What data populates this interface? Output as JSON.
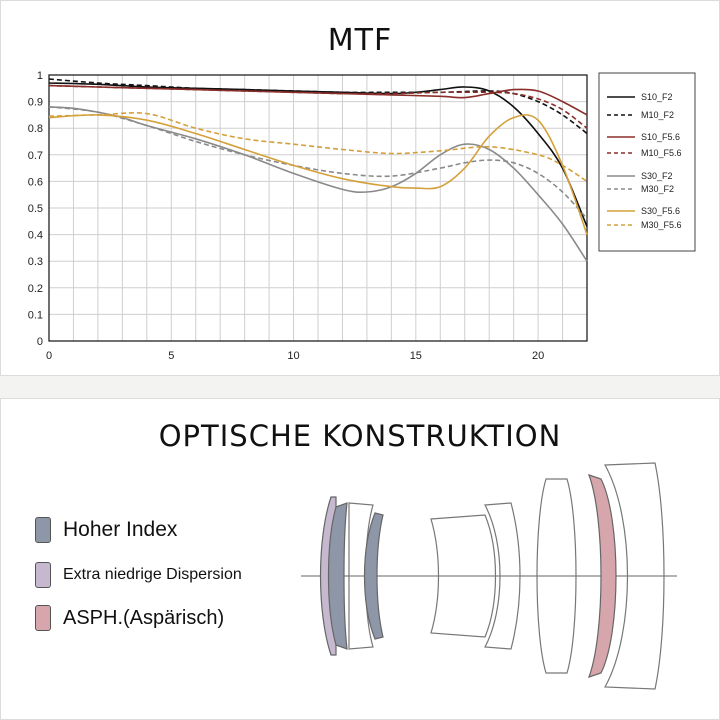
{
  "mtf": {
    "title": "MTF"
  },
  "chart_data": {
    "type": "line",
    "title": "MTF",
    "xlim": [
      0,
      22
    ],
    "ylim": [
      0,
      1
    ],
    "x_ticks": [
      0,
      5,
      10,
      15,
      20
    ],
    "y_ticks": [
      0,
      0.1,
      0.2,
      0.3,
      0.4,
      0.5,
      0.6,
      0.7,
      0.8,
      0.9,
      1
    ],
    "grid": true,
    "legend_position": "right",
    "series": [
      {
        "name": "S10_F2",
        "color": "#111111",
        "dash": "solid",
        "x": [
          0,
          2,
          4,
          6,
          8,
          10,
          12,
          14,
          15,
          16,
          17,
          18,
          19,
          20,
          21,
          22
        ],
        "y": [
          0.97,
          0.965,
          0.955,
          0.95,
          0.945,
          0.94,
          0.935,
          0.93,
          0.935,
          0.945,
          0.955,
          0.94,
          0.88,
          0.78,
          0.65,
          0.43
        ]
      },
      {
        "name": "M10_F2",
        "color": "#111111",
        "dash": "dashed",
        "x": [
          0,
          2,
          4,
          6,
          8,
          10,
          12,
          14,
          16,
          18,
          19,
          20,
          21,
          22
        ],
        "y": [
          0.985,
          0.97,
          0.96,
          0.95,
          0.945,
          0.94,
          0.935,
          0.935,
          0.935,
          0.94,
          0.93,
          0.9,
          0.85,
          0.78
        ]
      },
      {
        "name": "S10_F5.6",
        "color": "#8b2e2a",
        "dash": "solid",
        "x": [
          0,
          2,
          4,
          6,
          8,
          10,
          12,
          14,
          16,
          17,
          18,
          19,
          20,
          21,
          22
        ],
        "y": [
          0.96,
          0.955,
          0.95,
          0.945,
          0.94,
          0.935,
          0.93,
          0.925,
          0.92,
          0.915,
          0.93,
          0.945,
          0.94,
          0.9,
          0.85
        ]
      },
      {
        "name": "M10_F5.6",
        "color": "#8b2e2a",
        "dash": "dashed",
        "x": [
          0,
          2,
          4,
          6,
          8,
          10,
          12,
          14,
          16,
          18,
          19,
          20,
          21,
          22
        ],
        "y": [
          0.96,
          0.955,
          0.95,
          0.945,
          0.94,
          0.935,
          0.93,
          0.93,
          0.935,
          0.935,
          0.93,
          0.91,
          0.87,
          0.8
        ]
      },
      {
        "name": "S30_F2",
        "color": "#8a8a8a",
        "dash": "solid",
        "x": [
          0,
          1,
          2,
          3,
          4,
          6,
          8,
          10,
          12,
          13,
          14,
          15,
          16,
          17,
          18,
          19,
          20,
          21,
          22
        ],
        "y": [
          0.88,
          0.875,
          0.86,
          0.84,
          0.81,
          0.76,
          0.7,
          0.63,
          0.57,
          0.56,
          0.58,
          0.63,
          0.7,
          0.74,
          0.72,
          0.65,
          0.55,
          0.44,
          0.3
        ]
      },
      {
        "name": "M30_F2",
        "color": "#8a8a8a",
        "dash": "dashed",
        "x": [
          0,
          2,
          4,
          6,
          8,
          10,
          12,
          14,
          16,
          17,
          18,
          19,
          20,
          21,
          22
        ],
        "y": [
          0.88,
          0.86,
          0.81,
          0.75,
          0.7,
          0.66,
          0.63,
          0.62,
          0.65,
          0.67,
          0.68,
          0.67,
          0.63,
          0.56,
          0.46
        ]
      },
      {
        "name": "S30_F5.6",
        "color": "#d4a03a",
        "dash": "solid",
        "x": [
          0,
          2,
          4,
          6,
          8,
          10,
          12,
          14,
          15,
          16,
          17,
          18,
          19,
          20,
          21,
          22
        ],
        "y": [
          0.84,
          0.85,
          0.83,
          0.78,
          0.72,
          0.66,
          0.61,
          0.58,
          0.575,
          0.58,
          0.65,
          0.77,
          0.84,
          0.83,
          0.66,
          0.4
        ]
      },
      {
        "name": "M30_F5.6",
        "color": "#d4a03a",
        "dash": "dashed",
        "x": [
          0,
          2,
          4,
          6,
          8,
          10,
          12,
          14,
          16,
          18,
          20,
          21,
          22
        ],
        "y": [
          0.845,
          0.85,
          0.855,
          0.8,
          0.76,
          0.74,
          0.72,
          0.705,
          0.715,
          0.73,
          0.7,
          0.66,
          0.6
        ]
      }
    ]
  },
  "optics": {
    "title": "OPTISCHE KONSTRUKTION",
    "legend": [
      {
        "label": "Hoher Index",
        "color": "#8d97a8"
      },
      {
        "label": "Extra niedrige Dispersion",
        "color": "#c6b8cf"
      },
      {
        "label": "ASPH.(Aspärisch)",
        "color": "#d7a6ad"
      }
    ]
  }
}
